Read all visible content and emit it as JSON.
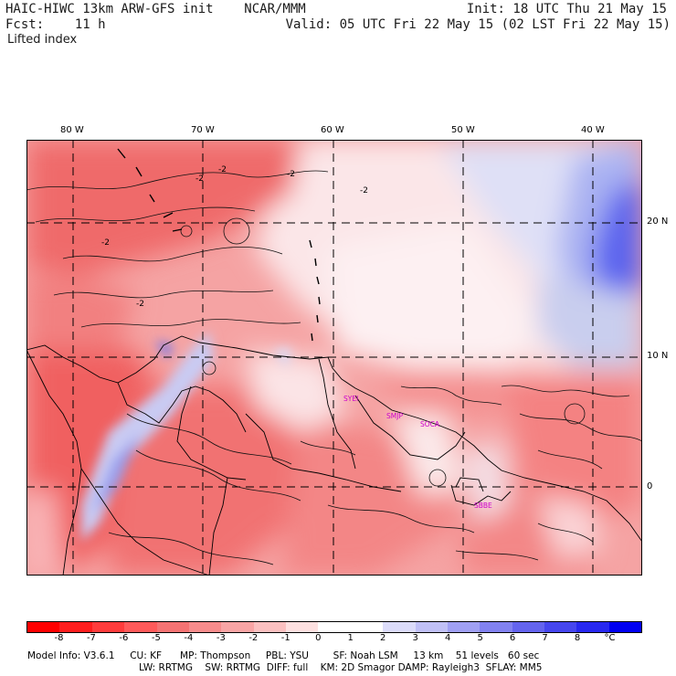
{
  "header": {
    "left_line1": "HAIC-HIWC 13km ARW-GFS init    NCAR/MMM",
    "left_line2": "Fcst:    11 h",
    "right_line1": "Init: 18 UTC Thu 21 May 15",
    "right_line2": "Valid: 05 UTC Fri 22 May 15 (02 LST Fri 22 May 15)",
    "field_name": "Lifted index"
  },
  "axes": {
    "top_labels": [
      "80 W",
      "70 W",
      "60 W",
      "50 W",
      "40 W"
    ],
    "right_labels": [
      "20 N",
      "10 N",
      "0"
    ]
  },
  "contours": {
    "labels": [
      "-2",
      "-2",
      "-2",
      "-2",
      "-2",
      "-2"
    ]
  },
  "stations": [
    "SYEI",
    "SMJP",
    "SOCA",
    "SBBE"
  ],
  "legend": {
    "colors": [
      "#ff0000",
      "#ff1e1e",
      "#ff3c3c",
      "#ff5a5a",
      "#f57373",
      "#f78c8c",
      "#f9a5a5",
      "#fbc0c0",
      "#fde0e0",
      "#ffffff",
      "#ffffff",
      "#dcdcfa",
      "#c0c0f6",
      "#a0a0f3",
      "#8282f0",
      "#6464ee",
      "#4646ee",
      "#2828f0",
      "#0000f2"
    ],
    "ticks": [
      "-8",
      "-7",
      "-6",
      "-5",
      "-4",
      "-3",
      "-2",
      "-1",
      "0",
      "1",
      "2",
      "3",
      "4",
      "5",
      "6",
      "7",
      "8",
      "°C"
    ]
  },
  "footer": {
    "line1": "Model Info: V3.6.1     CU: KF      MP: Thompson     PBL: YSU        SF: Noah LSM     13 km    51 levels   60 sec",
    "line2": "LW: RRTMG    SW: RRTMG  DIFF: full    KM: 2D Smagor DAMP: Rayleigh3  SFLAY: MM5"
  },
  "colors": {
    "strong_red": "#f06565",
    "light_red": "#f9b4b4",
    "near_white": "#fde8ea",
    "light_blue": "#c6cdf5",
    "deep_blue": "#4a55f0",
    "station_magenta": "#cc00cc"
  }
}
